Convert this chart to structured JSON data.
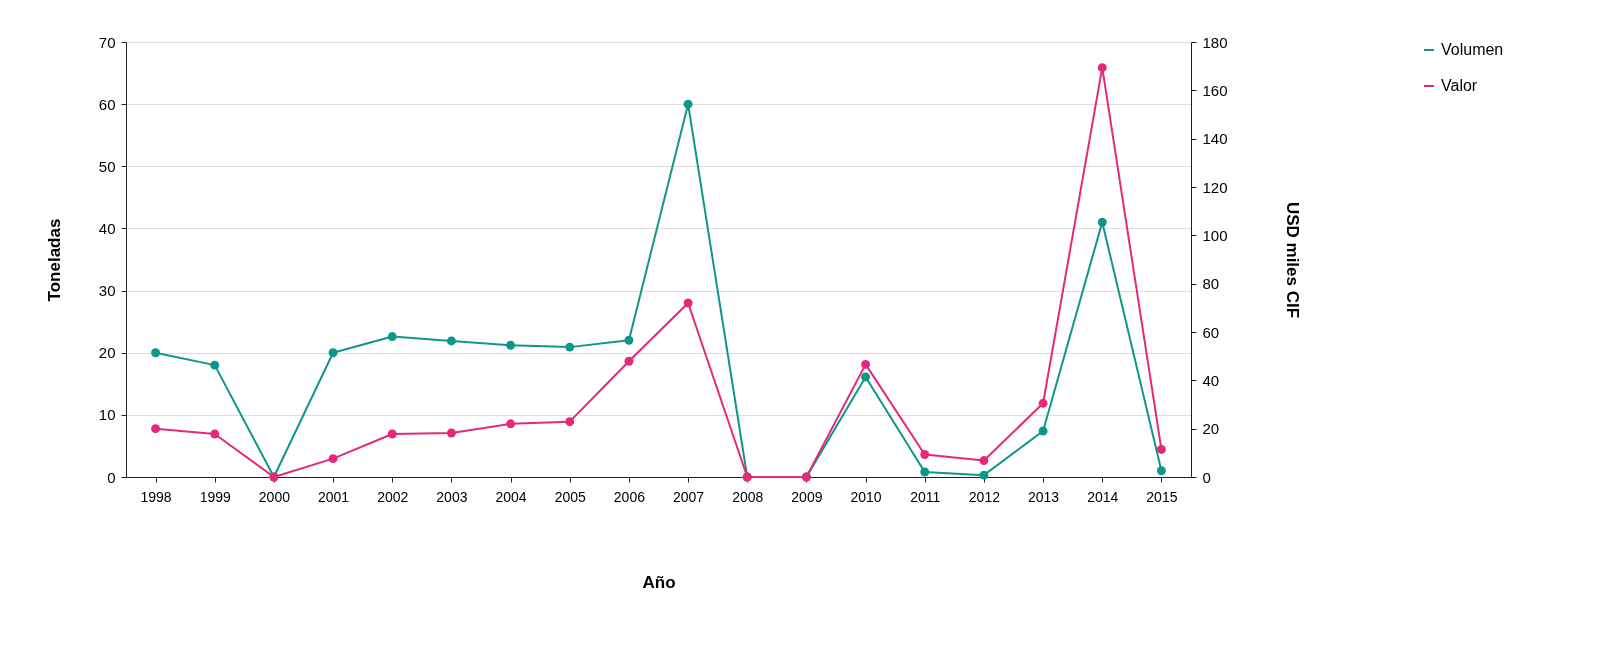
{
  "chart_data": {
    "type": "line",
    "xlabel": "Año",
    "ylabel": "Toneladas",
    "y2label": "USD miles CIF",
    "categories": [
      "1998",
      "1999",
      "2000",
      "2001",
      "2002",
      "2003",
      "2004",
      "2005",
      "2006",
      "2007",
      "2008",
      "2009",
      "2010",
      "2011",
      "2012",
      "2013",
      "2014",
      "2015"
    ],
    "series": [
      {
        "name": "Volumen",
        "color": "#0f968a",
        "values": [
          20,
          18,
          0,
          20,
          22.6,
          21.9,
          21.2,
          20.9,
          22,
          60,
          0,
          0,
          16.1,
          0.8,
          0.3,
          7.4,
          41,
          1
        ]
      },
      {
        "name": "Valor",
        "color": "#e6287a",
        "axis": "y2",
        "values": [
          20,
          17.8,
          0,
          7.6,
          17.8,
          18.2,
          22,
          22.9,
          47.9,
          72,
          0,
          0,
          46.6,
          9.3,
          6.8,
          30.5,
          169.4,
          11.4
        ]
      }
    ],
    "ylim": [
      0,
      70
    ],
    "yticks": [
      0,
      10,
      20,
      30,
      40,
      50,
      60,
      70
    ],
    "y2lim": [
      0,
      180
    ],
    "y2ticks": [
      0,
      20,
      40,
      60,
      80,
      100,
      120,
      140,
      160,
      180
    ],
    "grid": "y",
    "legend": "right",
    "marker": "circle",
    "line_style": "solid"
  }
}
